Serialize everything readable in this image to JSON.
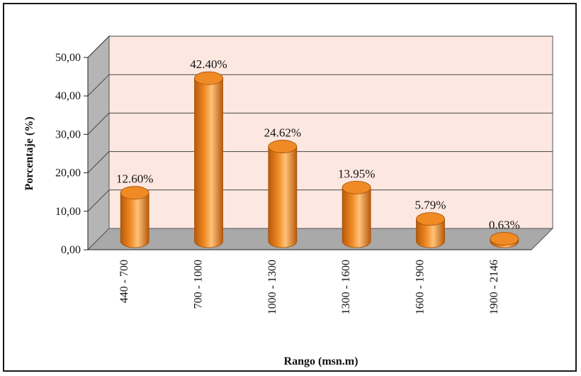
{
  "chart_data": {
    "type": "bar",
    "style": "3d-cylinder",
    "categories": [
      "440 - 700",
      "700 - 1000",
      "1000 - 1300",
      "1300 - 1600",
      "1600 - 1900",
      "1900 - 2146"
    ],
    "values": [
      12.6,
      42.4,
      24.62,
      13.95,
      5.79,
      0.63
    ],
    "data_labels": [
      "12.60%",
      "42.40%",
      "24.62%",
      "13.95%",
      "5.79%",
      "0.63%"
    ],
    "y_ticks": [
      "0,00",
      "10,00",
      "20,00",
      "30,00",
      "40,00",
      "50,00"
    ],
    "ylim": [
      0,
      50
    ],
    "xlabel": "Rango (msn.m)",
    "ylabel": "Porcentaje (%)",
    "grid": true,
    "legend": "none",
    "colors": {
      "bar": "#f08a24",
      "bar_light": "#ffc27a",
      "bar_dark": "#b85a0a",
      "wall": "#fde8e1",
      "side_wall": "#b5b5b5",
      "floor": "#a9a9a9",
      "grid": "#444444"
    }
  }
}
